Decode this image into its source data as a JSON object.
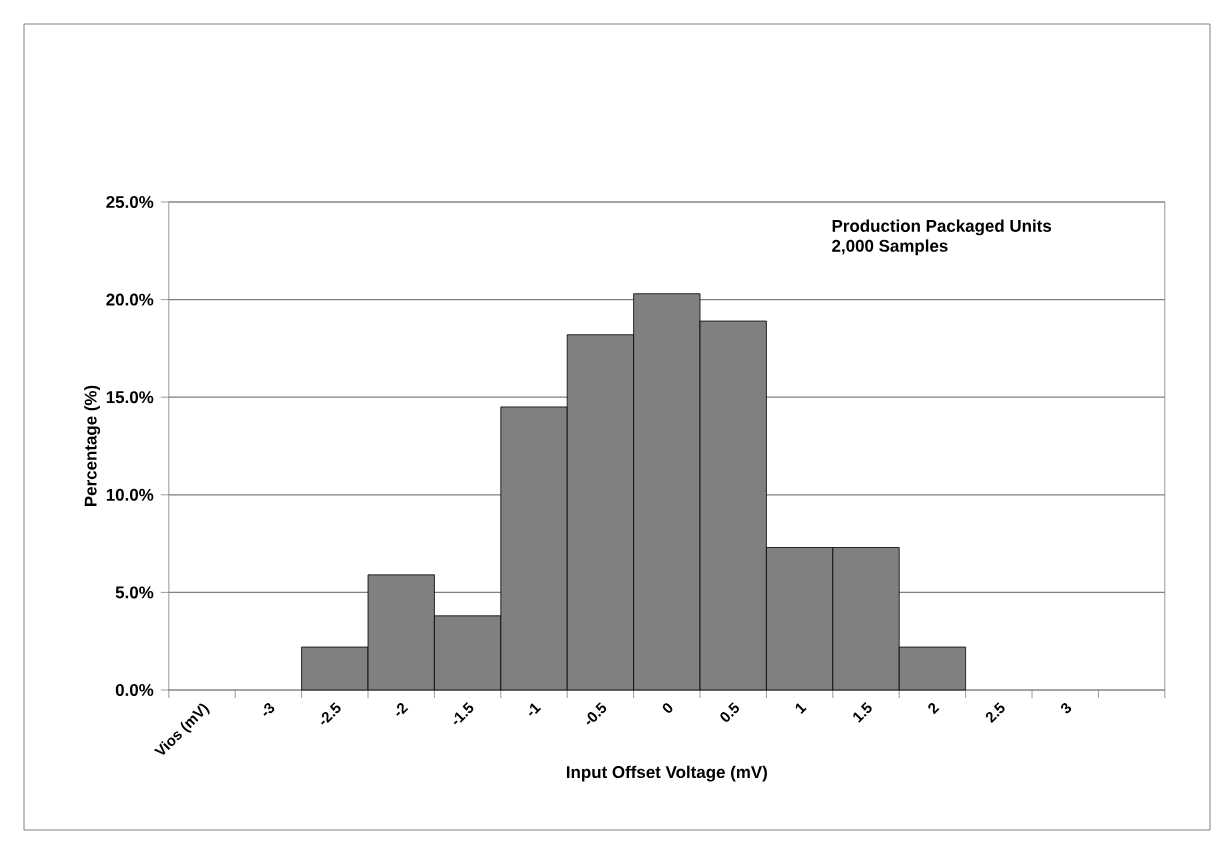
{
  "chart_data": {
    "type": "bar",
    "xlabel": "Input Offset Voltage (mV)",
    "ylabel": "Percentage (%)",
    "annotations": [
      "Production Packaged Units",
      "2,000 Samples"
    ],
    "categories": [
      "Vios (mV)",
      "-3",
      "-2.5",
      "-2",
      "-1.5",
      "-1",
      "-0.5",
      "0",
      "0.5",
      "1",
      "1.5",
      "2",
      "2.5",
      "3",
      null
    ],
    "values": [
      null,
      null,
      2.2,
      5.9,
      3.8,
      14.5,
      18.2,
      20.3,
      18.9,
      7.3,
      7.3,
      2.2,
      null,
      null,
      null
    ],
    "color": "#808080",
    "ylim": [
      0,
      25
    ],
    "yticks": [
      {
        "value": 0,
        "label": "0.0%"
      },
      {
        "value": 5,
        "label": "5.0%"
      },
      {
        "value": 10,
        "label": "10.0%"
      },
      {
        "value": 15,
        "label": "15.0%"
      },
      {
        "value": 20,
        "label": "20.0%"
      },
      {
        "value": 25,
        "label": "25.0%"
      }
    ],
    "grid": "y"
  }
}
